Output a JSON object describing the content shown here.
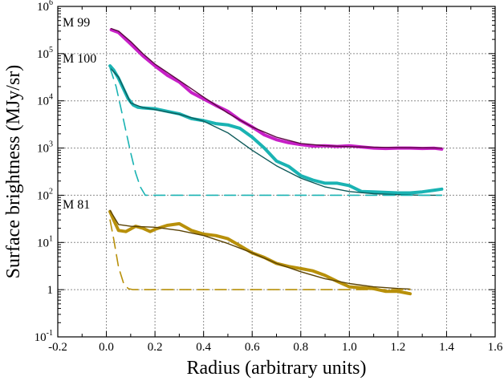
{
  "chart_data": {
    "type": "line",
    "title": "",
    "xlabel": "Radius (arbitrary units)",
    "ylabel": "Surface brightness (MJy/sr)",
    "xlim": [
      -0.2,
      1.6
    ],
    "ylim": [
      0.1,
      1000000
    ],
    "yscale": "log",
    "grid": true,
    "x_ticks": [
      "-0.2",
      "0.0",
      "0.2",
      "0.4",
      "0.6",
      "0.8",
      "1.0",
      "1.2",
      "1.4",
      "1.6"
    ],
    "y_ticks": [
      {
        "base": "10",
        "exp": "-1",
        "plain": ""
      },
      {
        "base": "",
        "exp": "",
        "plain": "1"
      },
      {
        "base": "10",
        "exp": "1",
        "plain": ""
      },
      {
        "base": "10",
        "exp": "2",
        "plain": ""
      },
      {
        "base": "10",
        "exp": "3",
        "plain": ""
      },
      {
        "base": "10",
        "exp": "4",
        "plain": ""
      },
      {
        "base": "10",
        "exp": "5",
        "plain": ""
      },
      {
        "base": "10",
        "exp": "6",
        "plain": ""
      }
    ],
    "series": [
      {
        "name": "M 99",
        "color": "#c71fc7",
        "style": "thick",
        "x": [
          0.02,
          0.05,
          0.1,
          0.15,
          0.2,
          0.25,
          0.3,
          0.35,
          0.4,
          0.45,
          0.5,
          0.55,
          0.6,
          0.65,
          0.7,
          0.75,
          0.8,
          0.85,
          0.9,
          0.95,
          1.0,
          1.05,
          1.1,
          1.15,
          1.2,
          1.25,
          1.3,
          1.35,
          1.38
        ],
        "y": [
          320000,
          280000,
          160000,
          90000,
          55000,
          35000,
          25000,
          15000,
          11000,
          8000,
          6000,
          3900,
          2800,
          1900,
          1500,
          1300,
          1180,
          1100,
          1120,
          1080,
          1120,
          1050,
          1000,
          980,
          1000,
          1000,
          980,
          990,
          950
        ]
      },
      {
        "name": "",
        "color": "#5a0a40",
        "style": "thin",
        "x": [
          0.02,
          0.05,
          0.1,
          0.15,
          0.2,
          0.3,
          0.4,
          0.5,
          0.6,
          0.7,
          0.8,
          0.9,
          1.0,
          1.1,
          1.2,
          1.3,
          1.38
        ],
        "y": [
          340000,
          300000,
          180000,
          100000,
          60000,
          27000,
          12000,
          5500,
          2800,
          1700,
          1250,
          1120,
          1070,
          1040,
          1020,
          1010,
          1000
        ]
      },
      {
        "name": "M 100",
        "color": "#1ab3b3",
        "style": "thick",
        "x": [
          0.015,
          0.03,
          0.05,
          0.07,
          0.09,
          0.11,
          0.13,
          0.15,
          0.2,
          0.25,
          0.3,
          0.35,
          0.4,
          0.45,
          0.5,
          0.55,
          0.6,
          0.65,
          0.7,
          0.75,
          0.8,
          0.85,
          0.9,
          0.95,
          1.0,
          1.05,
          1.1,
          1.15,
          1.2,
          1.25,
          1.3,
          1.35,
          1.38
        ],
        "y": [
          55000,
          45000,
          30000,
          18000,
          11000,
          8200,
          7300,
          7100,
          6800,
          6000,
          5300,
          4200,
          3800,
          3300,
          3100,
          2600,
          1700,
          1000,
          530,
          410,
          260,
          210,
          180,
          180,
          160,
          120,
          118,
          115,
          112,
          112,
          118,
          128,
          135
        ]
      },
      {
        "name": "",
        "color": "#0e5a5a",
        "style": "thin",
        "x": [
          0.015,
          0.05,
          0.1,
          0.15,
          0.2,
          0.3,
          0.4,
          0.5,
          0.6,
          0.7,
          0.8,
          0.9,
          1.0,
          1.1,
          1.2,
          1.3,
          1.38
        ],
        "y": [
          50000,
          32000,
          9000,
          7200,
          6500,
          5200,
          3700,
          2100,
          900,
          420,
          230,
          150,
          120,
          108,
          103,
          100,
          100
        ]
      },
      {
        "name": "",
        "color": "#1ab3b3",
        "style": "dashed",
        "x": [
          0.015,
          0.04,
          0.07,
          0.1,
          0.12,
          0.14,
          0.16,
          0.2,
          0.5,
          1.0,
          1.38
        ],
        "y": [
          50000,
          20000,
          4000,
          800,
          300,
          150,
          100,
          100,
          100,
          100,
          100
        ]
      },
      {
        "name": "M 81",
        "color": "#b8900a",
        "style": "thick",
        "x": [
          0.015,
          0.03,
          0.05,
          0.08,
          0.12,
          0.15,
          0.18,
          0.2,
          0.25,
          0.3,
          0.35,
          0.4,
          0.45,
          0.5,
          0.55,
          0.6,
          0.65,
          0.7,
          0.75,
          0.8,
          0.85,
          0.9,
          0.95,
          1.0,
          1.05,
          1.1,
          1.15,
          1.2,
          1.25
        ],
        "y": [
          45,
          30,
          18,
          17,
          22,
          20,
          17,
          19,
          23,
          25,
          18,
          15,
          14,
          12,
          8.5,
          6,
          4.8,
          3.6,
          3.1,
          2.8,
          2.5,
          2,
          1.5,
          1.15,
          1.1,
          1.05,
          0.92,
          0.92,
          0.82
        ]
      },
      {
        "name": "",
        "color": "#5a4204",
        "style": "thin",
        "x": [
          0.015,
          0.05,
          0.1,
          0.2,
          0.3,
          0.4,
          0.5,
          0.6,
          0.7,
          0.8,
          0.9,
          1.0,
          1.1,
          1.2,
          1.25
        ],
        "y": [
          48,
          24,
          22,
          21,
          18,
          14,
          9.5,
          6,
          3.6,
          2.4,
          1.7,
          1.35,
          1.15,
          1.06,
          1.03
        ]
      },
      {
        "name": "",
        "color": "#b8900a",
        "style": "dashed",
        "x": [
          0.015,
          0.03,
          0.05,
          0.07,
          0.09,
          0.11,
          0.2,
          0.5,
          1.0,
          1.25
        ],
        "y": [
          30,
          12,
          3,
          1.4,
          1.05,
          1.0,
          1.0,
          1.0,
          1.0,
          1.0
        ]
      }
    ]
  }
}
